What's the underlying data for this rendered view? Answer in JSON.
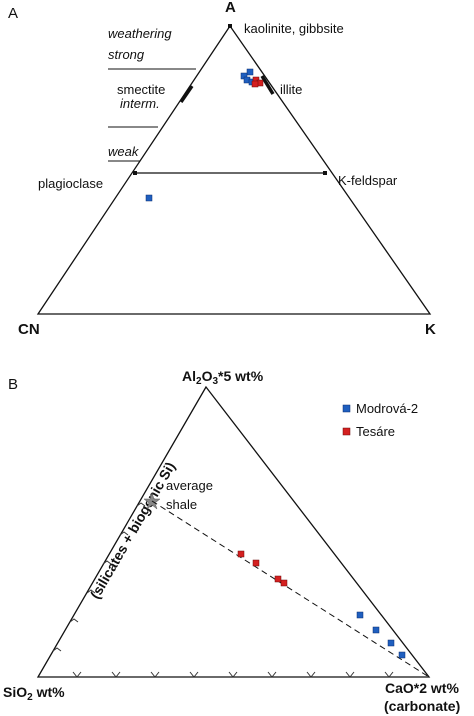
{
  "panel_a": {
    "panel_label": "A",
    "vertex_top": "A",
    "vertex_left": "CN",
    "vertex_right": "K",
    "kaolinite_label": "kaolinite, gibbsite",
    "smectite_label": "smectite",
    "illite_label": "illite",
    "plagioclase_label": "plagioclase",
    "kfeldspar_label": "K-feldspar",
    "weathering_1": "weathering",
    "weathering_2": "strong",
    "interm_label": "interm.",
    "weak_label": "weak",
    "samples": [
      {
        "series": "Modrová-2",
        "color": "#1f5fbf"
      },
      {
        "series": "Tesáre",
        "color": "#d42020"
      }
    ]
  },
  "panel_b": {
    "panel_label": "B",
    "top_label_prefix": "Al",
    "top_label_sub1": "2",
    "top_label_mid": "O",
    "top_label_sub2": "3",
    "top_label_suffix": "*5 wt%",
    "left_label_prefix": "SiO",
    "left_label_sub": "2",
    "left_label_suffix": " wt%",
    "right_label_line1": "CaO*2 wt%",
    "right_label_line2": "(carbonate)",
    "side_label": "(silicates + biogenic Si)",
    "average_shale_1": "average",
    "average_shale_2": "shale",
    "legend": [
      {
        "name": "Modrová-2",
        "color": "#1f5fbf"
      },
      {
        "name": "Tesáre",
        "color": "#d42020"
      }
    ]
  }
}
